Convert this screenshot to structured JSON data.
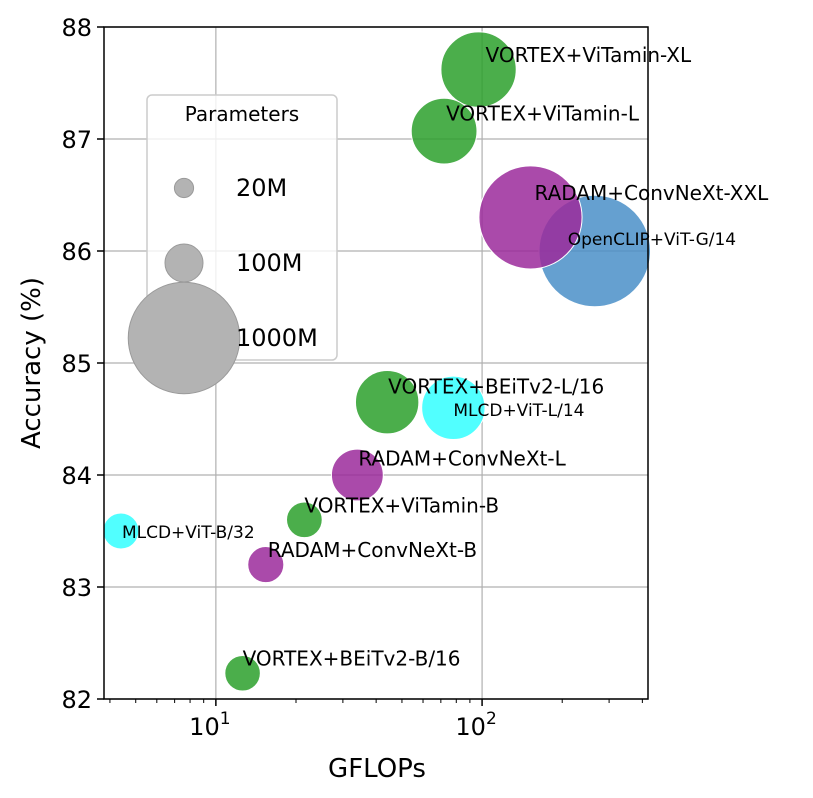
{
  "chart_data": {
    "type": "scatter",
    "title": "",
    "xlabel": "GFLOPs",
    "ylabel": "Accuracy (%)",
    "xscale": "log",
    "xlim": [
      3.8,
      420
    ],
    "ylim": [
      82,
      88
    ],
    "grid": true,
    "x_ticks": [
      {
        "value": 10,
        "base": "10",
        "exp": "1"
      },
      {
        "value": 100,
        "base": "10",
        "exp": "2"
      }
    ],
    "y_ticks": [
      {
        "value": 82,
        "label": "82"
      },
      {
        "value": 83,
        "label": "83"
      },
      {
        "value": 84,
        "label": "84"
      },
      {
        "value": 85,
        "label": "85"
      },
      {
        "value": 86,
        "label": "86"
      },
      {
        "value": 87,
        "label": "87"
      },
      {
        "value": 88,
        "label": "88"
      }
    ],
    "series": [
      {
        "name": "VORTEX",
        "color": "#2ca02c"
      },
      {
        "name": "RADAM",
        "color": "#9b2a9b"
      },
      {
        "name": "MLCD",
        "color": "#33ffff"
      },
      {
        "name": "OpenCLIP",
        "color": "#4a8fc8"
      }
    ],
    "points": [
      {
        "label": "VORTEX+ViTamin-XL",
        "series": "VORTEX",
        "gflops": 97,
        "accuracy": 87.62,
        "params_m": 440
      },
      {
        "label": "VORTEX+ViTamin-L",
        "series": "VORTEX",
        "gflops": 72,
        "accuracy": 87.07,
        "params_m": 330
      },
      {
        "label": "RADAM+ConvNeXt-XXL",
        "series": "RADAM",
        "gflops": 152,
        "accuracy": 86.3,
        "params_m": 850
      },
      {
        "label": "OpenCLIP+ViT-G/14",
        "series": "OpenCLIP",
        "gflops": 265,
        "accuracy": 86.0,
        "params_m": 1000
      },
      {
        "label": "VORTEX+BEiTv2-L/16",
        "series": "VORTEX",
        "gflops": 44,
        "accuracy": 84.65,
        "params_m": 305
      },
      {
        "label": "MLCD+ViT-L/14",
        "series": "MLCD",
        "gflops": 78,
        "accuracy": 84.6,
        "params_m": 305
      },
      {
        "label": "RADAM+ConvNeXt-L",
        "series": "RADAM",
        "gflops": 34,
        "accuracy": 84.0,
        "params_m": 198
      },
      {
        "label": "VORTEX+ViTamin-B",
        "series": "VORTEX",
        "gflops": 21.5,
        "accuracy": 83.6,
        "params_m": 87
      },
      {
        "label": "MLCD+ViT-B/32",
        "series": "MLCD",
        "gflops": 4.4,
        "accuracy": 83.5,
        "params_m": 88
      },
      {
        "label": "RADAM+ConvNeXt-B",
        "series": "RADAM",
        "gflops": 15.4,
        "accuracy": 83.2,
        "params_m": 89
      },
      {
        "label": "VORTEX+BEiTv2-B/16",
        "series": "VORTEX",
        "gflops": 12.6,
        "accuracy": 82.23,
        "params_m": 86
      }
    ],
    "legend": {
      "title": "Parameters",
      "placement": "upper-left",
      "entries": [
        {
          "label": "20M",
          "params_m": 20
        },
        {
          "label": "100M",
          "params_m": 100
        },
        {
          "label": "1000M",
          "params_m": 1000
        }
      ]
    }
  }
}
